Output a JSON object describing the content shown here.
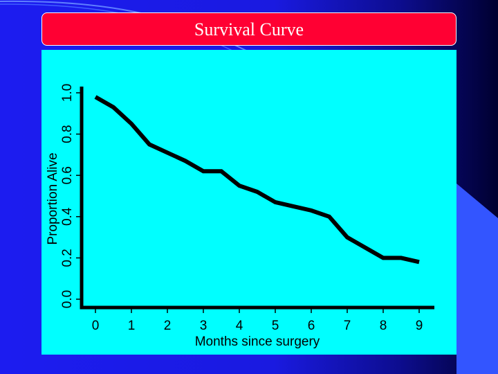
{
  "colors": {
    "background": "#1c1cf0",
    "title_bg": "#ff0033",
    "title_text": "#ffffff",
    "plot_bg": "#00ffff",
    "line": "#000000",
    "wedge": "#3355ff"
  },
  "slide": {
    "title": "Survival Curve"
  },
  "chart_data": {
    "type": "line",
    "title": "",
    "xlabel": "Months since surgery",
    "ylabel": "Proportion Alive",
    "xlim": [
      0,
      9
    ],
    "ylim": [
      0,
      1
    ],
    "x_ticks": [
      "0",
      "1",
      "2",
      "3",
      "4",
      "5",
      "6",
      "7",
      "8",
      "9"
    ],
    "y_ticks": [
      "0.0",
      "0.2",
      "0.4",
      "0.6",
      "0.8",
      "1.0"
    ],
    "grid": false,
    "series": [
      {
        "x": [
          0,
          0.5,
          1,
          1.5,
          2,
          2.5,
          3,
          3.5,
          4,
          4.5,
          5,
          5.5,
          6,
          6.5,
          7,
          7.5,
          8,
          8.5,
          9
        ],
        "y": [
          0.98,
          0.93,
          0.85,
          0.75,
          0.71,
          0.67,
          0.62,
          0.62,
          0.55,
          0.52,
          0.47,
          0.45,
          0.43,
          0.4,
          0.3,
          0.25,
          0.2,
          0.2,
          0.18
        ]
      }
    ]
  }
}
